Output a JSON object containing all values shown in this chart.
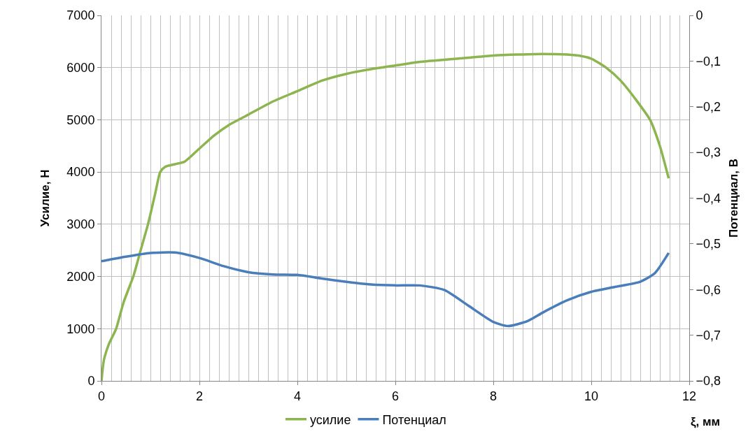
{
  "chart_data": {
    "type": "line",
    "xlabel": "ξ, мм",
    "ylabel": "Усилие, Н",
    "y2label": "Потенциал, В",
    "xlim": [
      0,
      12
    ],
    "xticks": [
      0,
      2,
      4,
      6,
      8,
      10,
      12
    ],
    "ylim": [
      0,
      7000
    ],
    "yticks": [
      0,
      1000,
      2000,
      3000,
      4000,
      5000,
      6000,
      7000
    ],
    "y2lim": [
      -0.8,
      0
    ],
    "y2ticks": [
      {
        "value": 0,
        "label": "0"
      },
      {
        "value": -0.1,
        "label": "−0,1"
      },
      {
        "value": -0.2,
        "label": "−0,2"
      },
      {
        "value": -0.3,
        "label": "−0,3"
      },
      {
        "value": -0.4,
        "label": "−0,4"
      },
      {
        "value": -0.5,
        "label": "−0,5"
      },
      {
        "value": -0.6,
        "label": "−0,6"
      },
      {
        "value": -0.7,
        "label": "−0,7"
      },
      {
        "value": -0.8,
        "label": "−0,8"
      }
    ],
    "grid": true,
    "legend": "bottom",
    "marker": "none",
    "line_style": "solid",
    "series": [
      {
        "name": "усилие",
        "color": "#8cb550",
        "x": [
          0,
          0.05,
          0.15,
          0.3,
          0.45,
          0.65,
          0.8,
          0.95,
          1.1,
          1.2,
          1.3,
          1.5,
          1.7,
          2.0,
          2.3,
          2.6,
          3.0,
          3.5,
          4.0,
          4.5,
          5.0,
          5.5,
          6.0,
          6.5,
          7.0,
          7.5,
          8.0,
          8.5,
          9.0,
          9.5,
          9.8,
          10.0,
          10.3,
          10.6,
          10.9,
          11.2,
          11.4,
          11.58
        ],
        "values": [
          0,
          400,
          700,
          1000,
          1500,
          2000,
          2500,
          3000,
          3600,
          4000,
          4100,
          4150,
          4200,
          4450,
          4700,
          4900,
          5100,
          5350,
          5550,
          5750,
          5880,
          5970,
          6040,
          6110,
          6150,
          6190,
          6230,
          6250,
          6260,
          6250,
          6220,
          6170,
          6000,
          5750,
          5400,
          5000,
          4500,
          3880
        ]
      },
      {
        "name": "Потенциал",
        "color": "#4a7ebb",
        "axis": "y2",
        "x": [
          0,
          0.5,
          1.0,
          1.5,
          2.0,
          2.5,
          3.0,
          3.5,
          4.0,
          4.5,
          5.0,
          5.5,
          6.0,
          6.5,
          7.0,
          7.5,
          8.0,
          8.3,
          8.7,
          9.0,
          9.5,
          10.0,
          10.5,
          11.0,
          11.3,
          11.58
        ],
        "values": [
          -0.538,
          -0.528,
          -0.52,
          -0.519,
          -0.531,
          -0.549,
          -0.562,
          -0.567,
          -0.568,
          -0.576,
          -0.583,
          -0.589,
          -0.591,
          -0.591,
          -0.601,
          -0.636,
          -0.671,
          -0.68,
          -0.669,
          -0.651,
          -0.624,
          -0.605,
          -0.594,
          -0.583,
          -0.564,
          -0.52
        ]
      }
    ]
  }
}
